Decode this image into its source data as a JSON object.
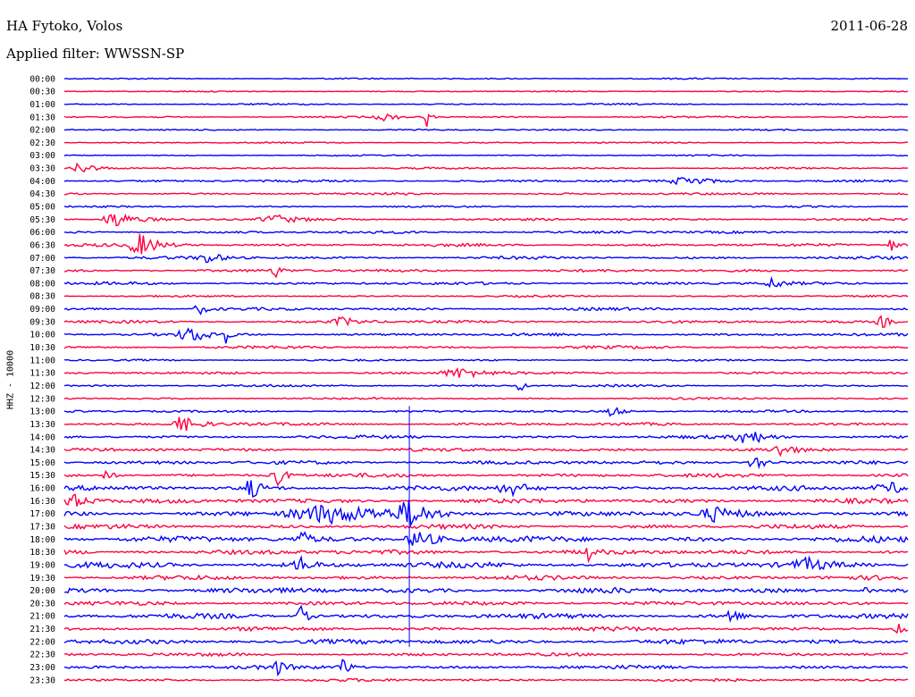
{
  "header": {
    "station": "HA Fytoko, Volos",
    "date": "2011-06-28",
    "filter": "Applied filter: WWSSN-SP"
  },
  "colors": {
    "even_row": "#0000ff",
    "odd_row": "#ff0040"
  },
  "chart_data": {
    "type": "line",
    "title": "",
    "ylabel": "HHZ - 10000",
    "xlabel": "",
    "grid": false,
    "legend": "none",
    "rows": [
      "00:00",
      "00:30",
      "01:00",
      "01:30",
      "02:00",
      "02:30",
      "03:00",
      "03:30",
      "04:00",
      "04:30",
      "05:00",
      "05:30",
      "06:00",
      "06:30",
      "07:00",
      "07:30",
      "08:00",
      "08:30",
      "09:00",
      "09:30",
      "10:00",
      "10:30",
      "11:00",
      "11:30",
      "12:00",
      "12:30",
      "13:00",
      "13:30",
      "14:00",
      "14:30",
      "15:00",
      "15:30",
      "16:00",
      "16:30",
      "17:00",
      "17:30",
      "18:00",
      "18:30",
      "19:00",
      "19:30",
      "20:00",
      "20:30",
      "21:00",
      "21:30",
      "22:00",
      "22:30",
      "23:00",
      "23:30"
    ],
    "noise_level": [
      0.5,
      0.4,
      0.5,
      0.6,
      0.5,
      0.5,
      0.5,
      0.6,
      0.8,
      0.8,
      0.6,
      0.8,
      0.9,
      1.0,
      1.0,
      1.0,
      1.0,
      0.6,
      1.0,
      1.0,
      1.0,
      1.0,
      0.7,
      0.8,
      0.8,
      0.7,
      0.8,
      1.0,
      1.1,
      1.1,
      1.3,
      1.3,
      1.6,
      1.6,
      1.9,
      1.5,
      2.0,
      1.7,
      2.0,
      1.5,
      1.9,
      1.4,
      1.7,
      1.4,
      1.7,
      1.1,
      1.3,
      1.0
    ],
    "events": [
      {
        "row": 3,
        "t": 0.38,
        "amp": 4,
        "dur": 0.015
      },
      {
        "row": 3,
        "t": 0.43,
        "amp": 12,
        "dur": 0.004
      },
      {
        "row": 7,
        "t": 0.02,
        "amp": 8,
        "dur": 0.012
      },
      {
        "row": 8,
        "t": 0.74,
        "amp": 5,
        "dur": 0.03
      },
      {
        "row": 11,
        "t": 0.06,
        "amp": 9,
        "dur": 0.02
      },
      {
        "row": 11,
        "t": 0.25,
        "amp": 5,
        "dur": 0.025
      },
      {
        "row": 13,
        "t": 0.09,
        "amp": 12,
        "dur": 0.02
      },
      {
        "row": 13,
        "t": 0.98,
        "amp": 8,
        "dur": 0.008
      },
      {
        "row": 14,
        "t": 0.17,
        "amp": 6,
        "dur": 0.015
      },
      {
        "row": 15,
        "t": 0.25,
        "amp": 8,
        "dur": 0.006
      },
      {
        "row": 16,
        "t": 0.84,
        "amp": 7,
        "dur": 0.01
      },
      {
        "row": 18,
        "t": 0.16,
        "amp": 7,
        "dur": 0.008
      },
      {
        "row": 19,
        "t": 0.33,
        "amp": 5,
        "dur": 0.015
      },
      {
        "row": 19,
        "t": 0.97,
        "amp": 7,
        "dur": 0.01
      },
      {
        "row": 20,
        "t": 0.15,
        "amp": 8,
        "dur": 0.02
      },
      {
        "row": 20,
        "t": 0.19,
        "amp": 14,
        "dur": 0.003
      },
      {
        "row": 23,
        "t": 0.47,
        "amp": 6,
        "dur": 0.03
      },
      {
        "row": 24,
        "t": 0.54,
        "amp": 9,
        "dur": 0.004
      },
      {
        "row": 26,
        "t": 0.65,
        "amp": 7,
        "dur": 0.01
      },
      {
        "row": 27,
        "t": 0.14,
        "amp": 9,
        "dur": 0.02
      },
      {
        "row": 28,
        "t": 0.81,
        "amp": 9,
        "dur": 0.02
      },
      {
        "row": 29,
        "t": 0.85,
        "amp": 7,
        "dur": 0.012
      },
      {
        "row": 30,
        "t": 0.82,
        "amp": 9,
        "dur": 0.012
      },
      {
        "row": 31,
        "t": 0.05,
        "amp": 6,
        "dur": 0.008
      },
      {
        "row": 31,
        "t": 0.25,
        "amp": 14,
        "dur": 0.01
      },
      {
        "row": 32,
        "t": 0.22,
        "amp": 12,
        "dur": 0.012
      },
      {
        "row": 32,
        "t": 0.53,
        "amp": 8,
        "dur": 0.02
      },
      {
        "row": 32,
        "t": 0.98,
        "amp": 6,
        "dur": 0.03
      },
      {
        "row": 33,
        "t": 0.01,
        "amp": 8,
        "dur": 0.02
      },
      {
        "row": 34,
        "t": 0.31,
        "amp": 10,
        "dur": 0.06
      },
      {
        "row": 34,
        "t": 0.41,
        "amp": 14,
        "dur": 0.02
      },
      {
        "row": 34,
        "t": 0.77,
        "amp": 7,
        "dur": 0.02
      },
      {
        "row": 36,
        "t": 0.28,
        "amp": 10,
        "dur": 0.01
      },
      {
        "row": 36,
        "t": 0.42,
        "amp": 11,
        "dur": 0.02
      },
      {
        "row": 37,
        "t": 0.62,
        "amp": 10,
        "dur": 0.005
      },
      {
        "row": 38,
        "t": 0.28,
        "amp": 9,
        "dur": 0.01
      },
      {
        "row": 38,
        "t": 0.88,
        "amp": 6,
        "dur": 0.02
      },
      {
        "row": 40,
        "t": 0.95,
        "amp": 8,
        "dur": 0.004
      },
      {
        "row": 42,
        "t": 0.28,
        "amp": 12,
        "dur": 0.008
      },
      {
        "row": 42,
        "t": 0.79,
        "amp": 12,
        "dur": 0.006
      },
      {
        "row": 43,
        "t": 0.99,
        "amp": 6,
        "dur": 0.008
      },
      {
        "row": 46,
        "t": 0.25,
        "amp": 10,
        "dur": 0.008
      },
      {
        "row": 46,
        "t": 0.33,
        "amp": 12,
        "dur": 0.008
      }
    ],
    "spikes": [
      {
        "row": 26,
        "t": 0.409,
        "to_row": 44
      }
    ]
  }
}
